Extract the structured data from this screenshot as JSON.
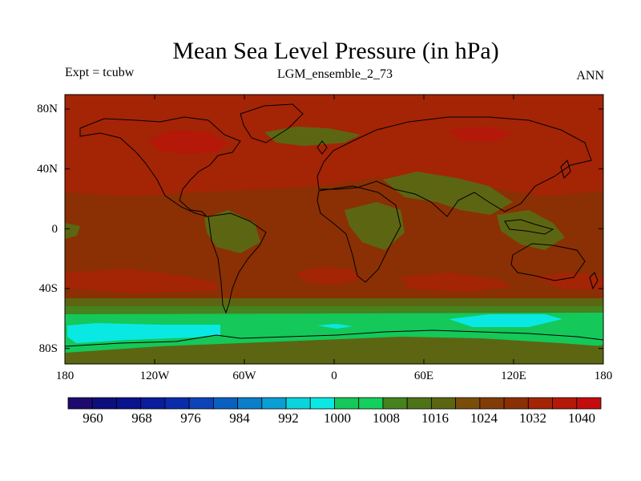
{
  "title": "Mean Sea Level Pressure (in hPa)",
  "experiment_label": "Expt = tcubw",
  "run_label": "LGM_ensemble_2_73",
  "season_label": "ANN",
  "latitude_labels": [
    "80N",
    "40N",
    "0",
    "40S",
    "80S"
  ],
  "longitude_labels": [
    "180",
    "120W",
    "60W",
    "0",
    "60E",
    "120E",
    "180"
  ],
  "colorbar": {
    "tick_labels": [
      "960",
      "968",
      "976",
      "984",
      "992",
      "1000",
      "1008",
      "1016",
      "1024",
      "1032",
      "1040"
    ],
    "colors": [
      "#1e0a6e",
      "#0c0e7c",
      "#0a128c",
      "#0a1c9c",
      "#0a2cac",
      "#0c44b8",
      "#0a60c0",
      "#0a7ec8",
      "#0a9ed4",
      "#0ad4dc",
      "#0ae8e4",
      "#14c85a",
      "#14d05c",
      "#46821e",
      "#4e7216",
      "#5c6612",
      "#7a4e0a",
      "#823c06",
      "#8a3004",
      "#a42406",
      "#b41808",
      "#c40c0c"
    ]
  },
  "map_colors": {
    "base": "#8a3004",
    "high": "#a42406",
    "very_high": "#b41808",
    "olive": "#5c6612",
    "olive_light": "#4e7216",
    "green_dark": "#46821e",
    "green": "#14c85a",
    "cyan": "#0ae8e4",
    "coast": "#000000"
  }
}
